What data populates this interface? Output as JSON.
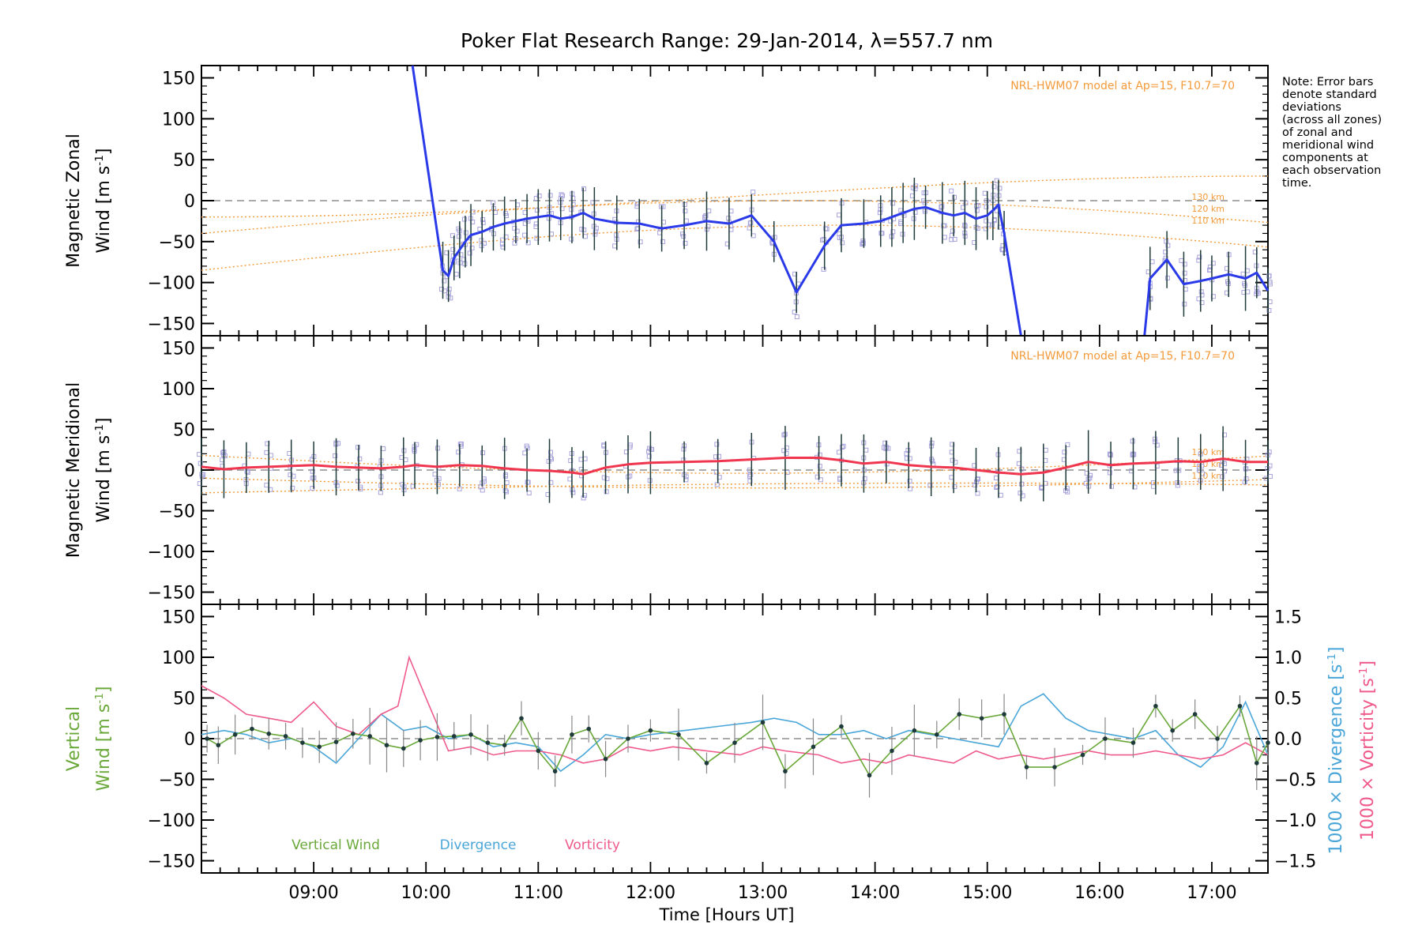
{
  "figure": {
    "title": "Poker Flat Research Range: 29-Jan-2014, λ=557.7 nm",
    "note": "Note: Error bars\ndenote standard\ndeviations\n(across all zones)\nof zonal and\nmeridional wind\ncomponents at\neach observation\ntime.",
    "xlabel": "Time [Hours UT]",
    "xticks": [
      "09:00",
      "10:00",
      "11:00",
      "12:00",
      "13:00",
      "14:00",
      "15:00",
      "16:00",
      "17:00"
    ],
    "colors": {
      "zonal": "#2a3ae8",
      "meridional": "#f0354f",
      "model": "#f39a3a",
      "zone_points": "#a7a3dc",
      "vertical": "#6aa83a",
      "divergence": "#4aa6d8",
      "vorticity": "#ef5a8a",
      "errorbar": "#1e3a3a"
    }
  },
  "chart_data": [
    {
      "type": "line",
      "panel": "zonal",
      "ylabel": [
        "Magnetic Zonal",
        "Wind [m s",
        "-1",
        "]"
      ],
      "ylim": [
        -165,
        165
      ],
      "yticks": [
        150,
        100,
        50,
        0,
        -50,
        -100,
        -150
      ],
      "xlim_hours": [
        8.0,
        17.5
      ],
      "model_label": "NRL-HWM07 model at Ap=15, F10.7=70",
      "model_altitudes": [
        "130 km",
        "120 km",
        "110 km"
      ],
      "series": [
        {
          "values": [
            [
              9.88,
              165
            ],
            [
              10.15,
              -85
            ],
            [
              10.2,
              -92
            ],
            [
              10.25,
              -70
            ],
            [
              10.3,
              -60
            ],
            [
              10.35,
              -50
            ],
            [
              10.4,
              -42
            ],
            [
              10.5,
              -38
            ],
            [
              10.6,
              -32
            ],
            [
              10.7,
              -28
            ],
            [
              10.8,
              -25
            ],
            [
              10.9,
              -22
            ],
            [
              11.0,
              -20
            ],
            [
              11.1,
              -18
            ],
            [
              11.2,
              -22
            ],
            [
              11.3,
              -20
            ],
            [
              11.4,
              -15
            ],
            [
              11.5,
              -22
            ],
            [
              11.7,
              -27
            ],
            [
              11.9,
              -28
            ],
            [
              12.1,
              -34
            ],
            [
              12.3,
              -30
            ],
            [
              12.5,
              -25
            ],
            [
              12.7,
              -28
            ],
            [
              12.9,
              -18
            ],
            [
              13.1,
              -50
            ],
            [
              13.3,
              -112
            ],
            [
              13.55,
              -55
            ],
            [
              13.7,
              -30
            ],
            [
              13.9,
              -28
            ],
            [
              14.05,
              -25
            ],
            [
              14.15,
              -20
            ],
            [
              14.25,
              -15
            ],
            [
              14.35,
              -10
            ],
            [
              14.45,
              -8
            ],
            [
              14.6,
              -15
            ],
            [
              14.7,
              -18
            ],
            [
              14.8,
              -15
            ],
            [
              14.9,
              -22
            ],
            [
              15.0,
              -18
            ],
            [
              15.05,
              -12
            ],
            [
              15.1,
              -5
            ],
            [
              15.15,
              -40
            ],
            [
              15.3,
              -165
            ]
          ]
        },
        {
          "values": [
            [
              16.4,
              -165
            ],
            [
              16.45,
              -95
            ],
            [
              16.6,
              -72
            ],
            [
              16.75,
              -102
            ],
            [
              16.9,
              -98
            ],
            [
              17.0,
              -95
            ],
            [
              17.15,
              -90
            ],
            [
              17.3,
              -95
            ],
            [
              17.4,
              -88
            ],
            [
              17.5,
              -110
            ]
          ]
        }
      ]
    },
    {
      "type": "line",
      "panel": "meridional",
      "ylabel": [
        "Magnetic Meridional",
        "Wind [m s",
        "-1",
        "]"
      ],
      "ylim": [
        -165,
        165
      ],
      "yticks": [
        150,
        100,
        50,
        0,
        -50,
        -100,
        -150
      ],
      "xlim_hours": [
        8.0,
        17.5
      ],
      "model_label": "NRL-HWM07 model at Ap=15, F10.7=70",
      "model_altitudes": [
        "130 km",
        "120 km",
        "110 km"
      ],
      "series": [
        {
          "values": [
            [
              8.0,
              4
            ],
            [
              8.2,
              1
            ],
            [
              8.4,
              3
            ],
            [
              8.6,
              4
            ],
            [
              8.8,
              5
            ],
            [
              9.0,
              6
            ],
            [
              9.2,
              4
            ],
            [
              9.4,
              3
            ],
            [
              9.6,
              2
            ],
            [
              9.8,
              4
            ],
            [
              9.9,
              6
            ],
            [
              10.1,
              4
            ],
            [
              10.3,
              6
            ],
            [
              10.5,
              5
            ],
            [
              10.7,
              2
            ],
            [
              10.9,
              0
            ],
            [
              11.1,
              -1
            ],
            [
              11.3,
              -3
            ],
            [
              11.4,
              -5
            ],
            [
              11.6,
              3
            ],
            [
              11.8,
              7
            ],
            [
              12.0,
              9
            ],
            [
              12.3,
              10
            ],
            [
              12.6,
              11
            ],
            [
              12.9,
              13
            ],
            [
              13.2,
              15
            ],
            [
              13.5,
              15
            ],
            [
              13.7,
              12
            ],
            [
              13.9,
              8
            ],
            [
              14.1,
              10
            ],
            [
              14.3,
              6
            ],
            [
              14.5,
              4
            ],
            [
              14.7,
              3
            ],
            [
              14.9,
              0
            ],
            [
              15.1,
              -3
            ],
            [
              15.3,
              -5
            ],
            [
              15.5,
              -3
            ],
            [
              15.7,
              3
            ],
            [
              15.9,
              10
            ],
            [
              16.1,
              6
            ],
            [
              16.3,
              8
            ],
            [
              16.5,
              9
            ],
            [
              16.7,
              11
            ],
            [
              16.9,
              10
            ],
            [
              17.1,
              14
            ],
            [
              17.3,
              10
            ],
            [
              17.5,
              10
            ]
          ]
        }
      ]
    },
    {
      "type": "line",
      "panel": "vertical",
      "ylabel_left": [
        "Vertical",
        "Wind [m s",
        "-1",
        "]"
      ],
      "ylabel_right_div": [
        "1000 × Divergence [s",
        "-1",
        "]"
      ],
      "ylabel_right_vort": [
        "1000 × Vorticity [s",
        "-1",
        "]"
      ],
      "ylim": [
        -165,
        165
      ],
      "yticks": [
        150,
        100,
        50,
        0,
        -50,
        -100,
        -150
      ],
      "y2lim": [
        -1.65,
        1.65
      ],
      "y2ticks": [
        "1.5",
        "1.0",
        "0.5",
        "0.0",
        "-0.5",
        "-1.0",
        "-1.5"
      ],
      "xlim_hours": [
        8.0,
        17.5
      ],
      "legend": [
        "Vertical Wind",
        "Divergence",
        "Vorticity"
      ],
      "series": [
        {
          "name": "Vertical Wind",
          "axis": "left",
          "values": [
            [
              8.05,
              0
            ],
            [
              8.15,
              -8
            ],
            [
              8.3,
              5
            ],
            [
              8.45,
              12
            ],
            [
              8.6,
              6
            ],
            [
              8.75,
              3
            ],
            [
              8.9,
              -5
            ],
            [
              9.05,
              -10
            ],
            [
              9.2,
              -4
            ],
            [
              9.35,
              6
            ],
            [
              9.5,
              3
            ],
            [
              9.65,
              -8
            ],
            [
              9.8,
              -12
            ],
            [
              9.95,
              -2
            ],
            [
              10.1,
              2
            ],
            [
              10.25,
              3
            ],
            [
              10.4,
              5
            ],
            [
              10.55,
              -5
            ],
            [
              10.7,
              -8
            ],
            [
              10.85,
              25
            ],
            [
              11.0,
              -15
            ],
            [
              11.15,
              -40
            ],
            [
              11.3,
              5
            ],
            [
              11.45,
              12
            ],
            [
              11.6,
              -25
            ],
            [
              11.8,
              0
            ],
            [
              12.0,
              10
            ],
            [
              12.25,
              5
            ],
            [
              12.5,
              -30
            ],
            [
              12.75,
              -5
            ],
            [
              13.0,
              20
            ],
            [
              13.2,
              -40
            ],
            [
              13.45,
              -10
            ],
            [
              13.7,
              15
            ],
            [
              13.95,
              -45
            ],
            [
              14.15,
              -15
            ],
            [
              14.35,
              10
            ],
            [
              14.55,
              5
            ],
            [
              14.75,
              30
            ],
            [
              14.95,
              25
            ],
            [
              15.15,
              30
            ],
            [
              15.35,
              -35
            ],
            [
              15.6,
              -35
            ],
            [
              15.85,
              -20
            ],
            [
              16.05,
              0
            ],
            [
              16.3,
              -5
            ],
            [
              16.5,
              40
            ],
            [
              16.65,
              10
            ],
            [
              16.85,
              30
            ],
            [
              17.05,
              0
            ],
            [
              17.25,
              40
            ],
            [
              17.4,
              -30
            ],
            [
              17.5,
              -5
            ]
          ]
        },
        {
          "name": "Divergence",
          "axis": "right",
          "values": [
            [
              8.0,
              0.05
            ],
            [
              8.2,
              0.1
            ],
            [
              8.4,
              0.05
            ],
            [
              8.6,
              -0.05
            ],
            [
              8.8,
              0.0
            ],
            [
              9.0,
              -0.1
            ],
            [
              9.2,
              -0.3
            ],
            [
              9.4,
              0.0
            ],
            [
              9.6,
              0.3
            ],
            [
              9.8,
              0.1
            ],
            [
              10.0,
              0.15
            ],
            [
              10.2,
              0.0
            ],
            [
              10.4,
              0.05
            ],
            [
              10.6,
              -0.1
            ],
            [
              10.8,
              -0.05
            ],
            [
              11.0,
              -0.1
            ],
            [
              11.2,
              -0.4
            ],
            [
              11.4,
              -0.2
            ],
            [
              11.6,
              0.05
            ],
            [
              11.8,
              0.0
            ],
            [
              12.0,
              0.05
            ],
            [
              12.3,
              0.1
            ],
            [
              12.6,
              0.15
            ],
            [
              12.9,
              0.2
            ],
            [
              13.1,
              0.25
            ],
            [
              13.3,
              0.2
            ],
            [
              13.5,
              0.05
            ],
            [
              13.7,
              0.05
            ],
            [
              13.9,
              0.1
            ],
            [
              14.1,
              0.0
            ],
            [
              14.3,
              0.1
            ],
            [
              14.5,
              0.05
            ],
            [
              14.7,
              0.0
            ],
            [
              14.9,
              -0.05
            ],
            [
              15.1,
              -0.1
            ],
            [
              15.3,
              0.4
            ],
            [
              15.5,
              0.55
            ],
            [
              15.7,
              0.25
            ],
            [
              15.9,
              0.1
            ],
            [
              16.1,
              0.05
            ],
            [
              16.3,
              0.0
            ],
            [
              16.5,
              0.1
            ],
            [
              16.7,
              -0.2
            ],
            [
              16.9,
              -0.35
            ],
            [
              17.1,
              -0.1
            ],
            [
              17.3,
              0.45
            ],
            [
              17.5,
              -0.2
            ]
          ]
        },
        {
          "name": "Vorticity",
          "axis": "right",
          "values": [
            [
              8.0,
              0.65
            ],
            [
              8.2,
              0.5
            ],
            [
              8.4,
              0.3
            ],
            [
              8.6,
              0.25
            ],
            [
              8.8,
              0.2
            ],
            [
              9.0,
              0.45
            ],
            [
              9.2,
              0.15
            ],
            [
              9.4,
              0.05
            ],
            [
              9.6,
              0.3
            ],
            [
              9.75,
              0.4
            ],
            [
              9.85,
              1.0
            ],
            [
              10.0,
              0.5
            ],
            [
              10.2,
              -0.15
            ],
            [
              10.4,
              -0.1
            ],
            [
              10.6,
              -0.2
            ],
            [
              10.8,
              -0.15
            ],
            [
              11.0,
              -0.15
            ],
            [
              11.2,
              -0.2
            ],
            [
              11.4,
              -0.3
            ],
            [
              11.6,
              -0.25
            ],
            [
              11.8,
              -0.1
            ],
            [
              12.0,
              -0.15
            ],
            [
              12.2,
              -0.1
            ],
            [
              12.5,
              -0.15
            ],
            [
              12.8,
              -0.2
            ],
            [
              13.0,
              -0.1
            ],
            [
              13.2,
              -0.15
            ],
            [
              13.5,
              -0.2
            ],
            [
              13.7,
              -0.3
            ],
            [
              13.9,
              -0.25
            ],
            [
              14.1,
              -0.3
            ],
            [
              14.3,
              -0.2
            ],
            [
              14.5,
              -0.25
            ],
            [
              14.7,
              -0.3
            ],
            [
              14.9,
              -0.15
            ],
            [
              15.1,
              -0.25
            ],
            [
              15.3,
              -0.2
            ],
            [
              15.5,
              -0.25
            ],
            [
              15.7,
              -0.2
            ],
            [
              15.9,
              -0.15
            ],
            [
              16.1,
              -0.2
            ],
            [
              16.3,
              -0.2
            ],
            [
              16.5,
              -0.15
            ],
            [
              16.7,
              -0.2
            ],
            [
              16.9,
              -0.25
            ],
            [
              17.1,
              -0.2
            ],
            [
              17.3,
              -0.05
            ],
            [
              17.5,
              -0.2
            ]
          ]
        }
      ]
    }
  ]
}
